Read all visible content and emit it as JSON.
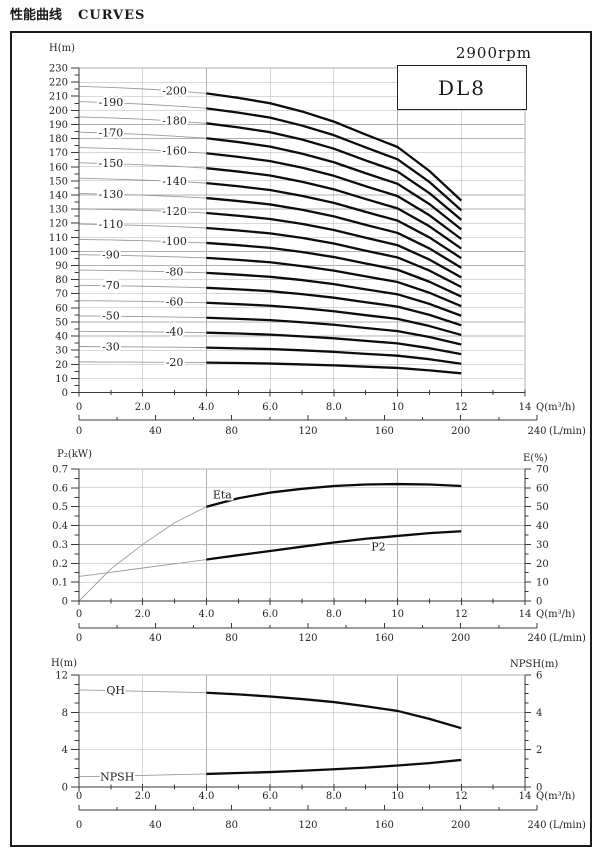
{
  "title": {
    "zh": "性能曲线",
    "en": "CURVES"
  },
  "header": {
    "rpm": "2900rpm",
    "model": "DL8"
  },
  "x_axis": {
    "label": "Q(m³/h)",
    "tick_labels": [
      "0",
      "2.0",
      "4.0",
      "6.0",
      "8.0",
      "10",
      "12",
      "14"
    ],
    "tick_values": [
      0,
      2,
      4,
      6,
      8,
      10,
      12,
      14
    ],
    "minor_values": [
      1,
      3,
      5,
      7,
      9,
      11,
      13
    ],
    "max": 14
  },
  "lpm_axis": {
    "label": "(L/min)",
    "tick_labels": [
      "0",
      "40",
      "80",
      "120",
      "160",
      "200",
      "240"
    ],
    "tick_values": [
      0,
      40,
      80,
      120,
      160,
      200,
      240
    ],
    "minor_values": [
      20,
      60,
      100,
      140,
      180,
      220
    ],
    "max": 240
  },
  "chart_data": [
    {
      "id": "head",
      "type": "line",
      "y_left": {
        "title": "H(m)",
        "tick_labels": [
          "0",
          "10",
          "20",
          "30",
          "40",
          "50",
          "60",
          "70",
          "80",
          "90",
          "100",
          "110",
          "120",
          "130",
          "140",
          "150",
          "160",
          "170",
          "180",
          "190",
          "200",
          "210",
          "220",
          "230"
        ],
        "tick_values": [
          0,
          10,
          20,
          30,
          40,
          50,
          60,
          70,
          80,
          90,
          100,
          110,
          120,
          130,
          140,
          150,
          160,
          170,
          180,
          190,
          200,
          210,
          220,
          230
        ],
        "minor_values": [
          5,
          15,
          25,
          35,
          45,
          55,
          65,
          75,
          85,
          95,
          105,
          115,
          125,
          135,
          145,
          155,
          165,
          175,
          185,
          195,
          205,
          215,
          225
        ],
        "max": 230
      },
      "q": [
        0,
        1,
        2,
        3,
        4,
        5,
        6,
        7,
        8,
        9,
        10,
        11,
        12
      ],
      "thin_until_q": 4,
      "series": [
        {
          "label": "-20",
          "stages": 20,
          "axis": "left",
          "label_q": 3,
          "label_dy": 3.5,
          "values": [
            21.7,
            21.6,
            21.5,
            21.4,
            21.2,
            20.9,
            20.5,
            19.9,
            19.2,
            18.3,
            17.4,
            15.7,
            13.6
          ]
        },
        {
          "label": "-30",
          "stages": 30,
          "axis": "left",
          "label_q": 1,
          "label_dy": 3.5,
          "values": [
            32.6,
            32.4,
            32.3,
            32.1,
            31.8,
            31.3,
            30.8,
            29.9,
            28.8,
            27.4,
            26.1,
            23.6,
            20.4
          ]
        },
        {
          "label": "-40",
          "stages": 40,
          "axis": "left",
          "label_q": 3,
          "label_dy": 3.5,
          "values": [
            43.4,
            43.2,
            43.0,
            42.8,
            42.4,
            41.8,
            41.0,
            39.8,
            38.4,
            36.6,
            34.8,
            31.4,
            27.2
          ]
        },
        {
          "label": "-50",
          "stages": 50,
          "axis": "left",
          "label_q": 1,
          "label_dy": 3.5,
          "values": [
            54.3,
            54.1,
            53.8,
            53.5,
            53.0,
            52.2,
            51.3,
            49.8,
            48.0,
            45.7,
            43.5,
            39.3,
            34.0
          ]
        },
        {
          "label": "-60",
          "stages": 60,
          "axis": "left",
          "label_q": 3,
          "label_dy": 3.5,
          "values": [
            65.1,
            64.9,
            64.6,
            64.1,
            63.6,
            62.6,
            61.5,
            59.8,
            57.6,
            54.8,
            52.2,
            47.1,
            40.8
          ]
        },
        {
          "label": "-70",
          "stages": 70,
          "axis": "left",
          "label_q": 1,
          "label_dy": 3.5,
          "values": [
            76.0,
            75.7,
            75.3,
            74.8,
            74.2,
            73.1,
            71.8,
            69.7,
            67.2,
            64.0,
            60.9,
            55.0,
            47.6
          ]
        },
        {
          "label": "-80",
          "stages": 80,
          "axis": "left",
          "label_q": 3,
          "label_dy": 3.5,
          "values": [
            86.8,
            86.5,
            86.1,
            85.5,
            84.8,
            83.5,
            82.0,
            79.7,
            76.8,
            73.1,
            69.6,
            62.8,
            54.4
          ]
        },
        {
          "label": "-90",
          "stages": 90,
          "axis": "left",
          "label_q": 1,
          "label_dy": 3.5,
          "values": [
            97.7,
            97.3,
            96.8,
            96.2,
            95.4,
            94.0,
            92.3,
            89.6,
            86.4,
            82.3,
            78.3,
            70.7,
            61.2
          ]
        },
        {
          "label": "-100",
          "stages": 100,
          "axis": "left",
          "label_q": 3,
          "label_dy": 3.5,
          "values": [
            108.5,
            108.1,
            107.6,
            106.9,
            106.0,
            104.4,
            102.5,
            99.6,
            96.0,
            91.4,
            87.0,
            78.5,
            68.0
          ]
        },
        {
          "label": "-110",
          "stages": 110,
          "axis": "left",
          "label_q": 1,
          "label_dy": 3.5,
          "values": [
            119.4,
            118.9,
            118.4,
            117.6,
            116.6,
            114.8,
            112.8,
            109.6,
            105.6,
            100.5,
            95.7,
            86.4,
            74.8
          ]
        },
        {
          "label": "-120",
          "stages": 120,
          "axis": "left",
          "label_q": 3,
          "label_dy": 3.5,
          "values": [
            130.2,
            129.7,
            129.1,
            128.3,
            127.2,
            125.3,
            123.0,
            119.5,
            115.2,
            109.7,
            104.4,
            94.2,
            81.6
          ]
        },
        {
          "label": "-130",
          "stages": 130,
          "axis": "left",
          "label_q": 1,
          "label_dy": 3.5,
          "values": [
            141.1,
            140.5,
            139.9,
            139.0,
            137.8,
            135.7,
            133.3,
            129.5,
            124.8,
            118.8,
            113.1,
            102.1,
            88.4
          ]
        },
        {
          "label": "-140",
          "stages": 140,
          "axis": "left",
          "label_q": 3,
          "label_dy": 3.5,
          "values": [
            151.9,
            151.3,
            150.6,
            149.7,
            148.4,
            146.2,
            143.5,
            139.4,
            134.4,
            128.0,
            121.8,
            109.9,
            95.2
          ]
        },
        {
          "label": "-150",
          "stages": 150,
          "axis": "left",
          "label_q": 1,
          "label_dy": 3.5,
          "values": [
            162.8,
            162.2,
            161.4,
            160.4,
            159.0,
            156.6,
            153.8,
            149.4,
            144.0,
            137.1,
            130.5,
            117.8,
            102.0
          ]
        },
        {
          "label": "-160",
          "stages": 160,
          "axis": "left",
          "label_q": 3,
          "label_dy": 3.5,
          "values": [
            173.6,
            173.0,
            172.2,
            171.0,
            169.6,
            167.0,
            164.0,
            159.4,
            153.6,
            146.2,
            139.2,
            125.6,
            108.8
          ]
        },
        {
          "label": "-170",
          "stages": 170,
          "axis": "left",
          "label_q": 1,
          "label_dy": 3.5,
          "values": [
            184.5,
            183.8,
            182.9,
            181.7,
            180.2,
            177.5,
            174.3,
            169.3,
            163.2,
            155.4,
            147.9,
            133.5,
            115.6
          ]
        },
        {
          "label": "-180",
          "stages": 180,
          "axis": "left",
          "label_q": 3,
          "label_dy": 3.5,
          "values": [
            195.3,
            194.6,
            193.7,
            192.4,
            190.8,
            187.9,
            184.5,
            179.3,
            172.8,
            164.5,
            156.6,
            141.3,
            122.4
          ]
        },
        {
          "label": "-190",
          "stages": 190,
          "axis": "left",
          "label_q": 1,
          "label_dy": 3.5,
          "values": [
            206.2,
            205.4,
            204.4,
            203.1,
            201.4,
            198.4,
            194.8,
            189.2,
            182.4,
            173.7,
            165.3,
            149.2,
            129.2
          ]
        },
        {
          "label": "-200",
          "stages": 200,
          "axis": "left",
          "label_q": 3,
          "label_dy": 3.5,
          "values": [
            217.0,
            216.2,
            215.2,
            213.8,
            212.0,
            208.8,
            205.0,
            199.2,
            192.0,
            182.8,
            174.0,
            157.0,
            136.0
          ]
        }
      ]
    },
    {
      "id": "power",
      "type": "line",
      "y_left": {
        "title": "P₂(kW)",
        "tick_labels": [
          "0",
          "0.1",
          "0.2",
          "0.3",
          "0.4",
          "0.5",
          "0.6",
          "0.7"
        ],
        "tick_values": [
          0,
          0.1,
          0.2,
          0.3,
          0.4,
          0.5,
          0.6,
          0.7
        ],
        "minor_values": [
          0.05,
          0.15,
          0.25,
          0.35,
          0.45,
          0.55,
          0.65
        ],
        "max": 0.7
      },
      "y_right": {
        "title": "E(%)",
        "tick_labels": [
          "0",
          "10",
          "20",
          "30",
          "40",
          "50",
          "60",
          "70"
        ],
        "tick_values": [
          0,
          10,
          20,
          30,
          40,
          50,
          60,
          70
        ],
        "minor_values": [
          5,
          15,
          25,
          35,
          45,
          55,
          65
        ],
        "max": 70
      },
      "q": [
        0,
        1,
        2,
        3,
        4,
        5,
        6,
        7,
        8,
        9,
        10,
        11,
        12
      ],
      "thin_until_q": 4,
      "series": [
        {
          "label": "Eta",
          "axis": "right",
          "label_q": 4.5,
          "label_dy": -4,
          "values": [
            0,
            17,
            30,
            41.5,
            50,
            54.5,
            57.5,
            59.5,
            61,
            61.8,
            62,
            61.8,
            61
          ]
        },
        {
          "label": "P2",
          "axis": "left",
          "label_q": 9.4,
          "label_dy": 13,
          "values": [
            0.13,
            0.152,
            0.175,
            0.197,
            0.22,
            0.243,
            0.265,
            0.288,
            0.31,
            0.33,
            0.345,
            0.36,
            0.37
          ]
        }
      ]
    },
    {
      "id": "qh_npsh",
      "type": "line",
      "y_left": {
        "title": "H(m)",
        "tick_labels": [
          "0",
          "4",
          "8",
          "12"
        ],
        "tick_values": [
          0,
          4,
          8,
          12
        ],
        "minor_values": [
          1,
          2,
          3,
          5,
          6,
          7,
          9,
          10,
          11
        ],
        "max": 12
      },
      "y_right": {
        "title": "NPSH(m)",
        "tick_labels": [
          "0",
          "2",
          "4",
          "6"
        ],
        "tick_values": [
          0,
          2,
          4,
          6
        ],
        "minor_values": [
          0.5,
          1,
          1.5,
          2.5,
          3,
          3.5,
          4.5,
          5,
          5.5
        ],
        "max": 6
      },
      "q": [
        0,
        1,
        2,
        3,
        4,
        5,
        6,
        7,
        8,
        9,
        10,
        11,
        12
      ],
      "thin_until_q": 4,
      "series": [
        {
          "label": "QH",
          "axis": "left",
          "label_q": 1.15,
          "label_dy": 3.5,
          "values": [
            10.4,
            10.33,
            10.25,
            10.18,
            10.1,
            9.92,
            9.7,
            9.42,
            9.1,
            8.65,
            8.15,
            7.3,
            6.3
          ]
        },
        {
          "label": "NPSH",
          "axis": "right",
          "label_q": 1.2,
          "label_dy": 4.5,
          "values": [
            0.55,
            0.58,
            0.62,
            0.66,
            0.7,
            0.75,
            0.8,
            0.87,
            0.95,
            1.04,
            1.15,
            1.28,
            1.45
          ]
        }
      ]
    }
  ]
}
